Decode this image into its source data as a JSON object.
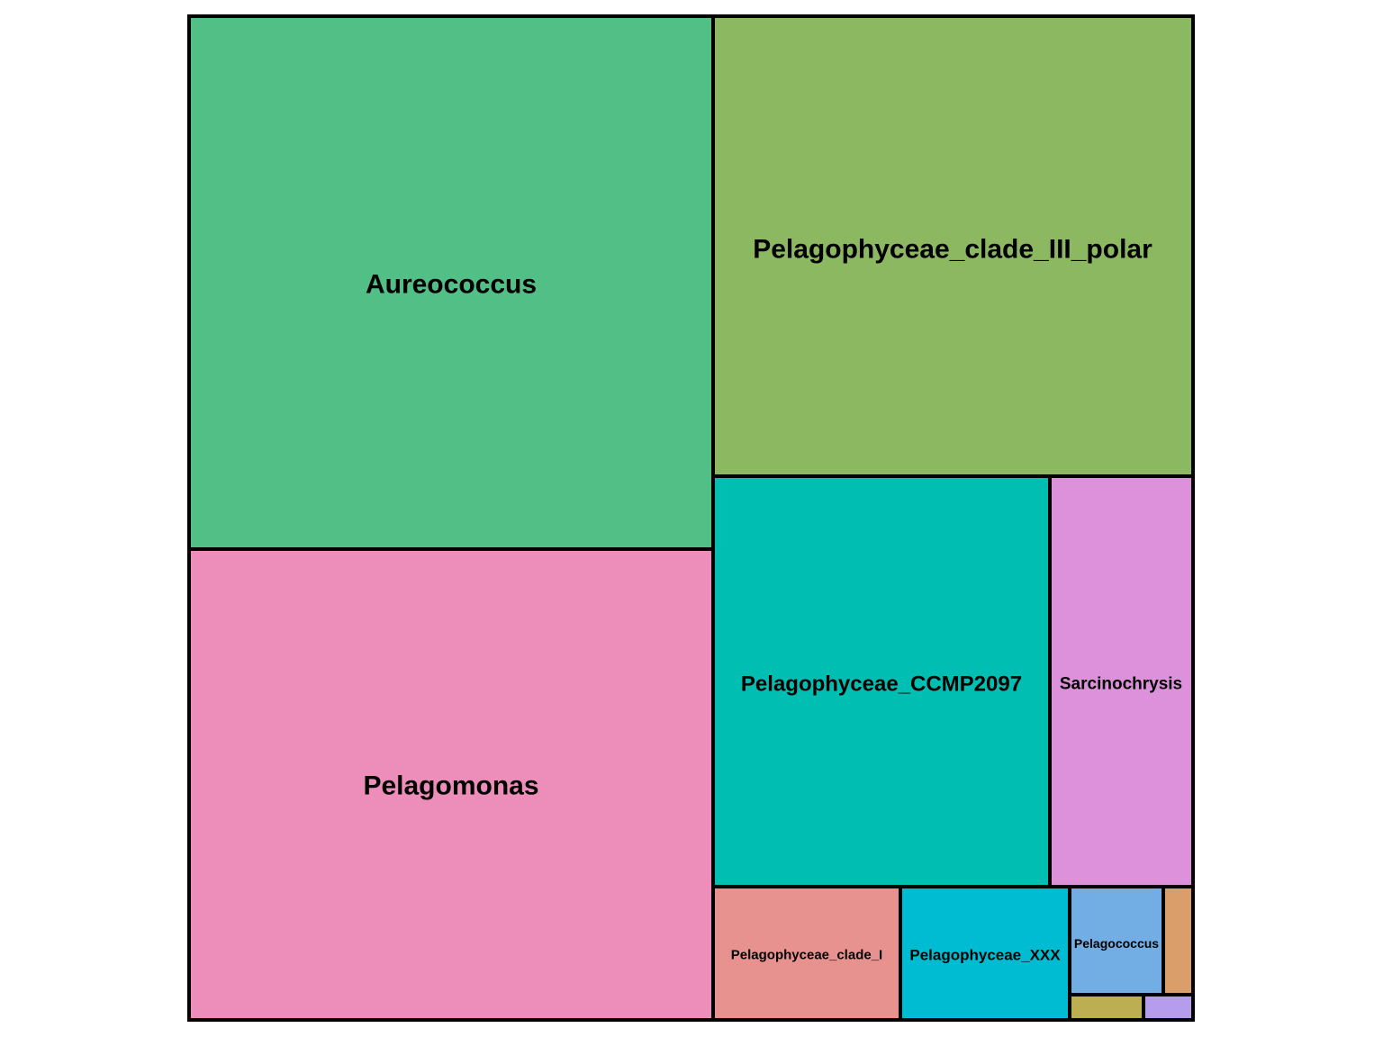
{
  "chart_data": {
    "type": "treemap",
    "tiles": [
      {
        "name": "Aureococcus",
        "label": "Aureococcus",
        "value": 34.4,
        "color": "#52bf86"
      },
      {
        "name": "Pelagomonas",
        "label": "Pelagomonas",
        "value": 32.5,
        "color": "#ed8dba"
      },
      {
        "name": "Pelagophyceae_clade_III_polar",
        "label": "Pelagophyceae_clade_III_polar",
        "value": 23.8,
        "color": "#8db862"
      },
      {
        "name": "Pelagophyceae_CCMP2097",
        "label": "Pelagophyceae_CCMP2097",
        "value": 13.6,
        "color": "#00bfb2"
      },
      {
        "name": "Sarcinochrysis",
        "label": "Sarcinochrysis",
        "value": 5.8,
        "color": "#dd91da"
      },
      {
        "name": "Pelagophyceae_clade_I",
        "label": "Pelagophyceae_clade_I",
        "value": 2.5,
        "color": "#e8928f"
      },
      {
        "name": "Pelagophyceae_XXX",
        "label": "Pelagophyceae_XXX",
        "value": 2.2,
        "color": "#00bcd3"
      },
      {
        "name": "Pelagococcus",
        "label": "Pelagococcus",
        "value": 1.0,
        "color": "#72aee4"
      },
      {
        "name": "orange-tile",
        "label": "",
        "value": 0.3,
        "color": "#da9e6a"
      },
      {
        "name": "olive-tile",
        "label": "",
        "value": 0.2,
        "color": "#bcaf52"
      },
      {
        "name": "lavender-tile",
        "label": "",
        "value": 0.13,
        "color": "#b59ced"
      }
    ]
  }
}
